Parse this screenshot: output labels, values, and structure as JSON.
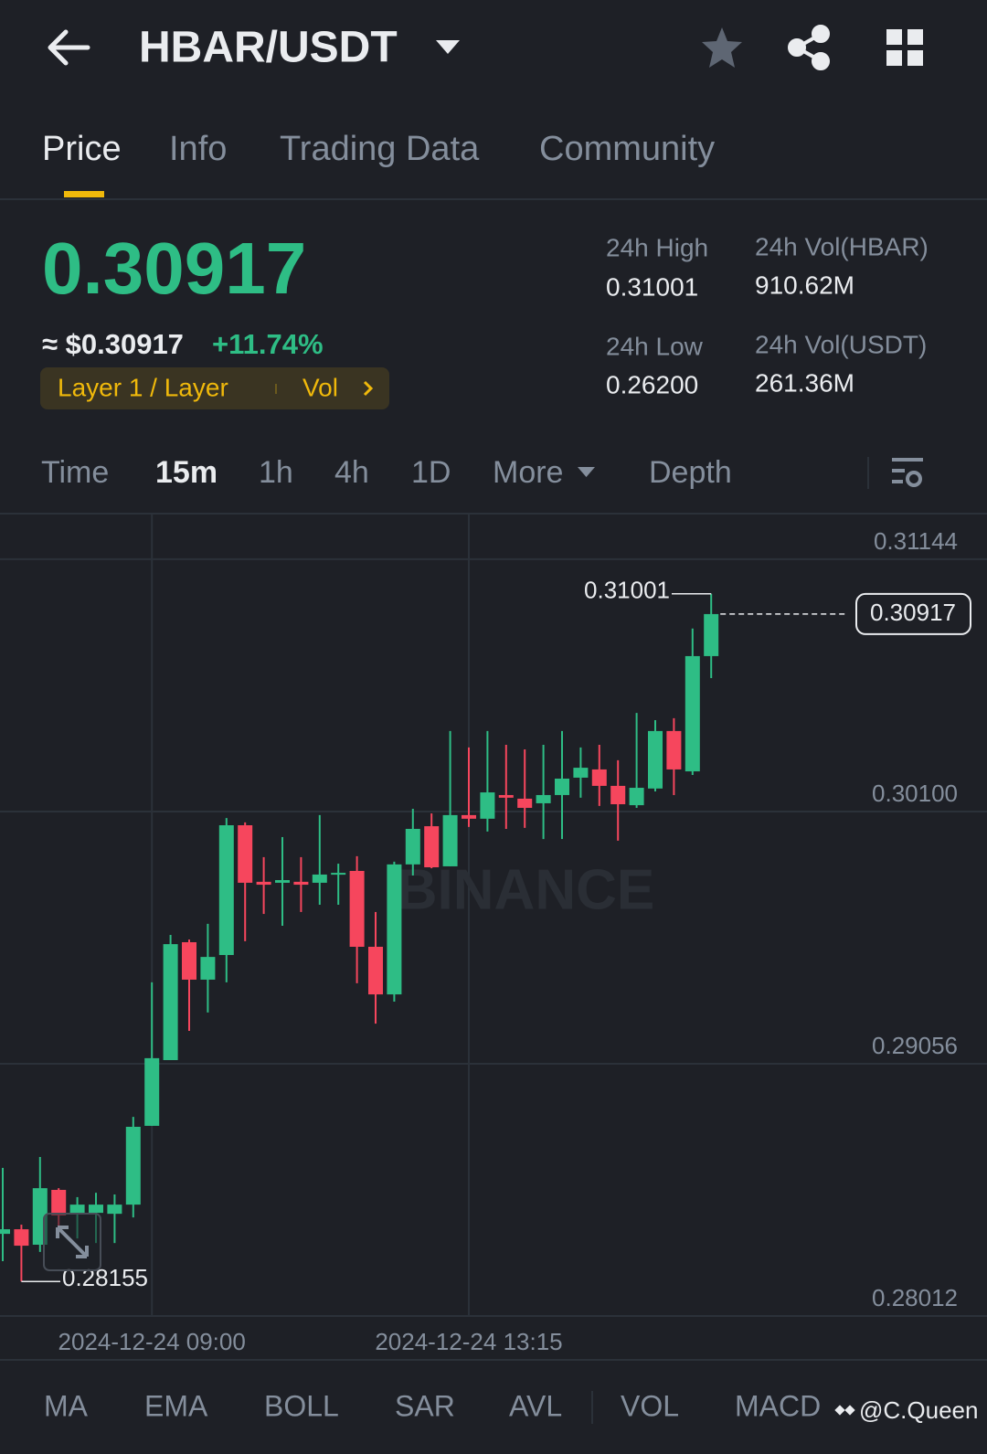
{
  "header": {
    "title": "HBAR/USDT"
  },
  "tabs": [
    "Price",
    "Info",
    "Trading Data",
    "Community"
  ],
  "price": {
    "last": "0.30917",
    "usd": "≈ $0.30917",
    "change": "+11.74%",
    "tag": "Layer 1 / Layer",
    "tag_extra": "Vol"
  },
  "stats": [
    {
      "label": "24h High",
      "value": "0.31001"
    },
    {
      "label": "24h Vol(HBAR)",
      "value": "910.62M"
    },
    {
      "label": "24h Low",
      "value": "0.26200"
    },
    {
      "label": "24h Vol(USDT)",
      "value": "261.36M"
    }
  ],
  "intervals": [
    "Time",
    "15m",
    "1h",
    "4h",
    "1D",
    "More",
    "Depth"
  ],
  "chart_data": {
    "type": "candlestick",
    "categories": [
      null,
      null,
      null,
      null,
      null,
      null,
      null,
      null,
      "2024-12-24 09:00",
      null,
      null,
      null,
      null,
      null,
      null,
      null,
      null,
      null,
      null,
      null,
      null,
      null,
      null,
      null,
      null,
      "2024-12-24 13:15",
      null,
      null,
      null,
      null,
      null,
      null,
      null,
      null,
      null,
      null,
      null,
      null,
      null
    ],
    "open": [
      0.28352,
      0.28371,
      0.28307,
      0.28534,
      0.28435,
      0.28439,
      0.28435,
      0.28473,
      0.28799,
      0.29071,
      0.29559,
      0.29404,
      0.29506,
      0.30043,
      0.29809,
      0.29805,
      0.29809,
      0.29805,
      0.29839,
      0.29854,
      0.2954,
      0.29343,
      0.29881,
      0.30039,
      0.29873,
      0.30085,
      0.3007,
      0.30168,
      0.30153,
      0.30134,
      0.30168,
      0.3024,
      0.30274,
      0.30206,
      0.30126,
      0.30195,
      0.30433,
      0.30266,
      0.30743
    ],
    "high": [
      0.28625,
      0.2839,
      0.2867,
      0.28541,
      0.28504,
      0.28522,
      0.28515,
      0.28836,
      0.29393,
      0.29589,
      0.2957,
      0.29635,
      0.30073,
      0.30055,
      0.29911,
      0.29994,
      0.29911,
      0.30085,
      0.29884,
      0.29915,
      0.29684,
      0.29892,
      0.30111,
      0.30092,
      0.30433,
      0.30365,
      0.30433,
      0.30376,
      0.30357,
      0.30376,
      0.30433,
      0.30365,
      0.30376,
      0.30312,
      0.30508,
      0.30478,
      0.30486,
      0.30857,
      0.31001
    ],
    "low": [
      0.28239,
      0.28155,
      0.28277,
      0.28371,
      0.28333,
      0.28314,
      0.28314,
      0.2842,
      0.28799,
      0.29071,
      0.29192,
      0.29268,
      0.29393,
      0.29563,
      0.29676,
      0.29627,
      0.29684,
      0.29714,
      0.29714,
      0.29389,
      0.29222,
      0.29313,
      0.29835,
      0.29865,
      0.29873,
      0.30036,
      0.30017,
      0.30028,
      0.30032,
      0.29986,
      0.29986,
      0.30157,
      0.30123,
      0.29979,
      0.30115,
      0.30183,
      0.30168,
      0.30251,
      0.30652
    ],
    "close": [
      0.28371,
      0.28303,
      0.28541,
      0.28428,
      0.28473,
      0.28473,
      0.28473,
      0.28795,
      0.29079,
      0.29551,
      0.29404,
      0.29498,
      0.30043,
      0.29805,
      0.29797,
      0.29816,
      0.29797,
      0.29839,
      0.29846,
      0.2954,
      0.29343,
      0.29881,
      0.30028,
      0.29869,
      0.30085,
      0.3007,
      0.30179,
      0.30157,
      0.30115,
      0.30168,
      0.30236,
      0.30281,
      0.30206,
      0.3013,
      0.30198,
      0.30433,
      0.30274,
      0.30743,
      0.30917
    ],
    "up_color": "#2ebd85",
    "down_color": "#f6465d",
    "ylim": [
      0.28012,
      0.31329
    ],
    "yticks": [
      0.31144,
      {
        "value": 0.301,
        "label": "0.30100"
      },
      0.29056,
      0.28012
    ],
    "grid": true,
    "high_label": 0.31001,
    "low_label": 0.28155,
    "last_price": 0.30917,
    "watermark": "BINANCE"
  },
  "indicators": [
    "MA",
    "EMA",
    "BOLL",
    "SAR",
    "AVL",
    "VOL",
    "MACD"
  ],
  "credit": "@C.Queen"
}
